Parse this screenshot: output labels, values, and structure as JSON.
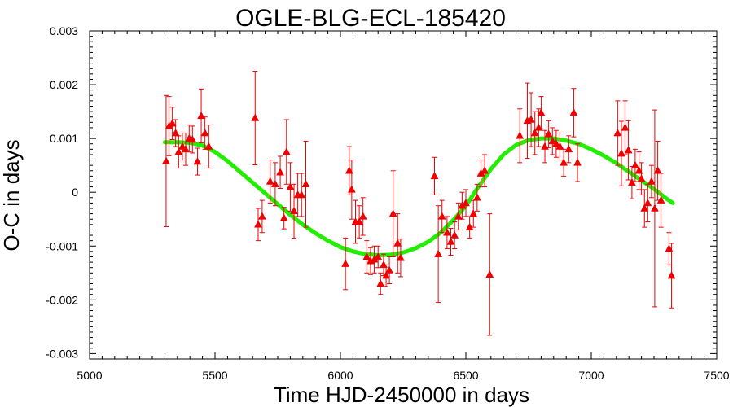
{
  "chart_data": {
    "type": "scatter",
    "title": "OGLE-BLG-ECL-185420",
    "xlabel": "Time HJD-2450000 in days",
    "ylabel": "O-C in days",
    "xlim": [
      5000,
      7500
    ],
    "ylim": [
      -0.0031,
      0.003
    ],
    "x_ticks": [
      5000,
      5500,
      6000,
      6500,
      7000,
      7500
    ],
    "x_tick_labels": [
      "5000",
      "5500",
      "6000",
      "6500",
      "7000",
      "7500"
    ],
    "y_ticks": [
      -0.003,
      -0.002,
      -0.001,
      0,
      0.001,
      0.002,
      0.003
    ],
    "y_tick_labels": [
      "-0.003",
      "-0.002",
      "-0.001",
      "0",
      "0.001",
      "0.002",
      "0.003"
    ],
    "grid": false,
    "colors": {
      "points": "#ee0000",
      "fit": "#22ee00"
    },
    "series": [
      {
        "kind": "points_with_errorbars",
        "points": [
          {
            "x": 5305,
            "y": 0.00058,
            "err": 0.00122
          },
          {
            "x": 5317,
            "y": 0.00123,
            "err": 0.00055
          },
          {
            "x": 5330,
            "y": 0.00128,
            "err": 0.0003
          },
          {
            "x": 5343,
            "y": 0.0011,
            "err": 0.00025
          },
          {
            "x": 5355,
            "y": 0.00075,
            "err": 0.0003
          },
          {
            "x": 5370,
            "y": 0.00085,
            "err": 0.00025
          },
          {
            "x": 5383,
            "y": 0.0008,
            "err": 0.0003
          },
          {
            "x": 5397,
            "y": 0.001,
            "err": 0.00025
          },
          {
            "x": 5410,
            "y": 0.00098,
            "err": 0.00025
          },
          {
            "x": 5430,
            "y": 0.00057,
            "err": 0.00025
          },
          {
            "x": 5445,
            "y": 0.00142,
            "err": 0.0005
          },
          {
            "x": 5460,
            "y": 0.0011,
            "err": 0.0003
          },
          {
            "x": 5475,
            "y": 0.00085,
            "err": 0.0004
          },
          {
            "x": 5660,
            "y": 0.00138,
            "err": 0.00087
          },
          {
            "x": 5672,
            "y": -0.0006,
            "err": 0.0003
          },
          {
            "x": 5688,
            "y": -0.00045,
            "err": 0.0003
          },
          {
            "x": 5720,
            "y": 0.0002,
            "err": 0.0004
          },
          {
            "x": 5740,
            "y": 0.00015,
            "err": 0.0004
          },
          {
            "x": 5760,
            "y": 0.00037,
            "err": 0.0003
          },
          {
            "x": 5775,
            "y": -0.00048,
            "err": 0.0002
          },
          {
            "x": 5785,
            "y": 0.00075,
            "err": 0.0006
          },
          {
            "x": 5800,
            "y": 0.0001,
            "err": 0.00045
          },
          {
            "x": 5815,
            "y": -0.00035,
            "err": 0.0005
          },
          {
            "x": 5830,
            "y": -5e-05,
            "err": 0.0004
          },
          {
            "x": 5845,
            "y": -5e-05,
            "err": 0.0004
          },
          {
            "x": 5862,
            "y": 0.00015,
            "err": 0.0008
          },
          {
            "x": 6020,
            "y": -0.00133,
            "err": 0.00048
          },
          {
            "x": 6035,
            "y": 0.0004,
            "err": 0.00045
          },
          {
            "x": 6045,
            "y": 5e-05,
            "err": 0.00055
          },
          {
            "x": 6060,
            "y": -0.00055,
            "err": 0.0004
          },
          {
            "x": 6075,
            "y": -0.00055,
            "err": 0.0003
          },
          {
            "x": 6090,
            "y": -0.00045,
            "err": 0.00035
          },
          {
            "x": 6105,
            "y": -0.0012,
            "err": 0.0003
          },
          {
            "x": 6120,
            "y": -0.00128,
            "err": 0.00025
          },
          {
            "x": 6135,
            "y": -0.00125,
            "err": 0.00025
          },
          {
            "x": 6150,
            "y": -0.0012,
            "err": 0.0002
          },
          {
            "x": 6160,
            "y": -0.0017,
            "err": 0.0002
          },
          {
            "x": 6172,
            "y": -0.00135,
            "err": 0.0002
          },
          {
            "x": 6182,
            "y": -0.00155,
            "err": 0.0002
          },
          {
            "x": 6195,
            "y": -0.00145,
            "err": 0.00025
          },
          {
            "x": 6210,
            "y": -0.0004,
            "err": 0.0008
          },
          {
            "x": 6228,
            "y": -0.00095,
            "err": 0.00055
          },
          {
            "x": 6240,
            "y": -0.00122,
            "err": 0.00035
          },
          {
            "x": 6375,
            "y": 0.0003,
            "err": 0.00035
          },
          {
            "x": 6390,
            "y": -0.00115,
            "err": 0.0009
          },
          {
            "x": 6405,
            "y": -0.00045,
            "err": 0.0003
          },
          {
            "x": 6425,
            "y": -0.00075,
            "err": 0.0003
          },
          {
            "x": 6440,
            "y": -0.00092,
            "err": 0.00025
          },
          {
            "x": 6455,
            "y": -0.0008,
            "err": 0.00025
          },
          {
            "x": 6470,
            "y": -0.00045,
            "err": 0.00025
          },
          {
            "x": 6485,
            "y": -0.00025,
            "err": 0.00025
          },
          {
            "x": 6500,
            "y": -0.0002,
            "err": 0.00025
          },
          {
            "x": 6515,
            "y": -0.00065,
            "err": 0.0002
          },
          {
            "x": 6530,
            "y": -0.0004,
            "err": 0.00025
          },
          {
            "x": 6545,
            "y": -0.0001,
            "err": 0.00025
          },
          {
            "x": 6560,
            "y": 0.00035,
            "err": 0.00025
          },
          {
            "x": 6575,
            "y": 0.0004,
            "err": 0.0003
          },
          {
            "x": 6595,
            "y": -0.00153,
            "err": 0.00113
          },
          {
            "x": 6715,
            "y": 0.00105,
            "err": 0.0005
          },
          {
            "x": 6745,
            "y": 0.00133,
            "err": 0.0007
          },
          {
            "x": 6760,
            "y": 0.00135,
            "err": 0.0005
          },
          {
            "x": 6775,
            "y": 0.0011,
            "err": 0.0004
          },
          {
            "x": 6790,
            "y": 0.0012,
            "err": 0.00035
          },
          {
            "x": 6800,
            "y": 0.00148,
            "err": 0.0003
          },
          {
            "x": 6815,
            "y": 0.00085,
            "err": 0.0003
          },
          {
            "x": 6830,
            "y": 0.00108,
            "err": 0.00025
          },
          {
            "x": 6845,
            "y": 0.00095,
            "err": 0.00025
          },
          {
            "x": 6860,
            "y": 0.0009,
            "err": 0.00025
          },
          {
            "x": 6875,
            "y": 0.00085,
            "err": 0.00025
          },
          {
            "x": 6890,
            "y": 0.00055,
            "err": 0.00025
          },
          {
            "x": 6910,
            "y": 0.0008,
            "err": 0.00025
          },
          {
            "x": 6930,
            "y": 0.00148,
            "err": 0.00045
          },
          {
            "x": 6945,
            "y": 0.00055,
            "err": 0.00035
          },
          {
            "x": 7105,
            "y": 0.0011,
            "err": 0.0006
          },
          {
            "x": 7120,
            "y": 0.00072,
            "err": 0.0006
          },
          {
            "x": 7135,
            "y": 0.0012,
            "err": 0.0005
          },
          {
            "x": 7148,
            "y": 0.00078,
            "err": 0.00055
          },
          {
            "x": 7162,
            "y": 0.00018,
            "err": 0.0003
          },
          {
            "x": 7175,
            "y": 0.0005,
            "err": 0.0003
          },
          {
            "x": 7190,
            "y": 0.0004,
            "err": 0.00035
          },
          {
            "x": 7200,
            "y": 0.00025,
            "err": 0.0003
          },
          {
            "x": 7212,
            "y": -0.0003,
            "err": 0.00035
          },
          {
            "x": 7225,
            "y": -0.0002,
            "err": 0.00035
          },
          {
            "x": 7240,
            "y": 0.0002,
            "err": 0.0003
          },
          {
            "x": 7253,
            "y": -0.0003,
            "err": 0.00183
          },
          {
            "x": 7265,
            "y": 0.0004,
            "err": 0.00055
          },
          {
            "x": 7278,
            "y": -0.00015,
            "err": 0.0005
          },
          {
            "x": 7310,
            "y": -0.00105,
            "err": 0.0003
          },
          {
            "x": 7320,
            "y": -0.00155,
            "err": 0.0006
          }
        ]
      },
      {
        "kind": "fit_curve",
        "x": [
          5300,
          5350,
          5400,
          5450,
          5500,
          5550,
          5600,
          5650,
          5700,
          5750,
          5800,
          5850,
          5900,
          5950,
          6000,
          6050,
          6100,
          6150,
          6200,
          6250,
          6300,
          6350,
          6400,
          6450,
          6500,
          6550,
          6600,
          6650,
          6700,
          6750,
          6800,
          6850,
          6900,
          6950,
          7000,
          7050,
          7100,
          7150,
          7200,
          7250,
          7300,
          7325
        ],
        "y": [
          0.00093,
          0.00093,
          0.00092,
          0.00087,
          0.00075,
          0.00058,
          0.00038,
          0.00018,
          -2e-05,
          -0.00022,
          -0.00042,
          -0.0006,
          -0.00076,
          -0.0009,
          -0.00102,
          -0.0011,
          -0.00115,
          -0.00117,
          -0.00116,
          -0.00112,
          -0.00104,
          -0.00092,
          -0.00075,
          -0.00052,
          -0.00025,
          0.0001,
          0.00043,
          0.0007,
          0.00088,
          0.00097,
          0.001,
          0.001,
          0.00096,
          0.0009,
          0.0008,
          0.00068,
          0.00054,
          0.00038,
          0.00022,
          6e-05,
          -0.00012,
          -0.0002
        ]
      }
    ]
  }
}
